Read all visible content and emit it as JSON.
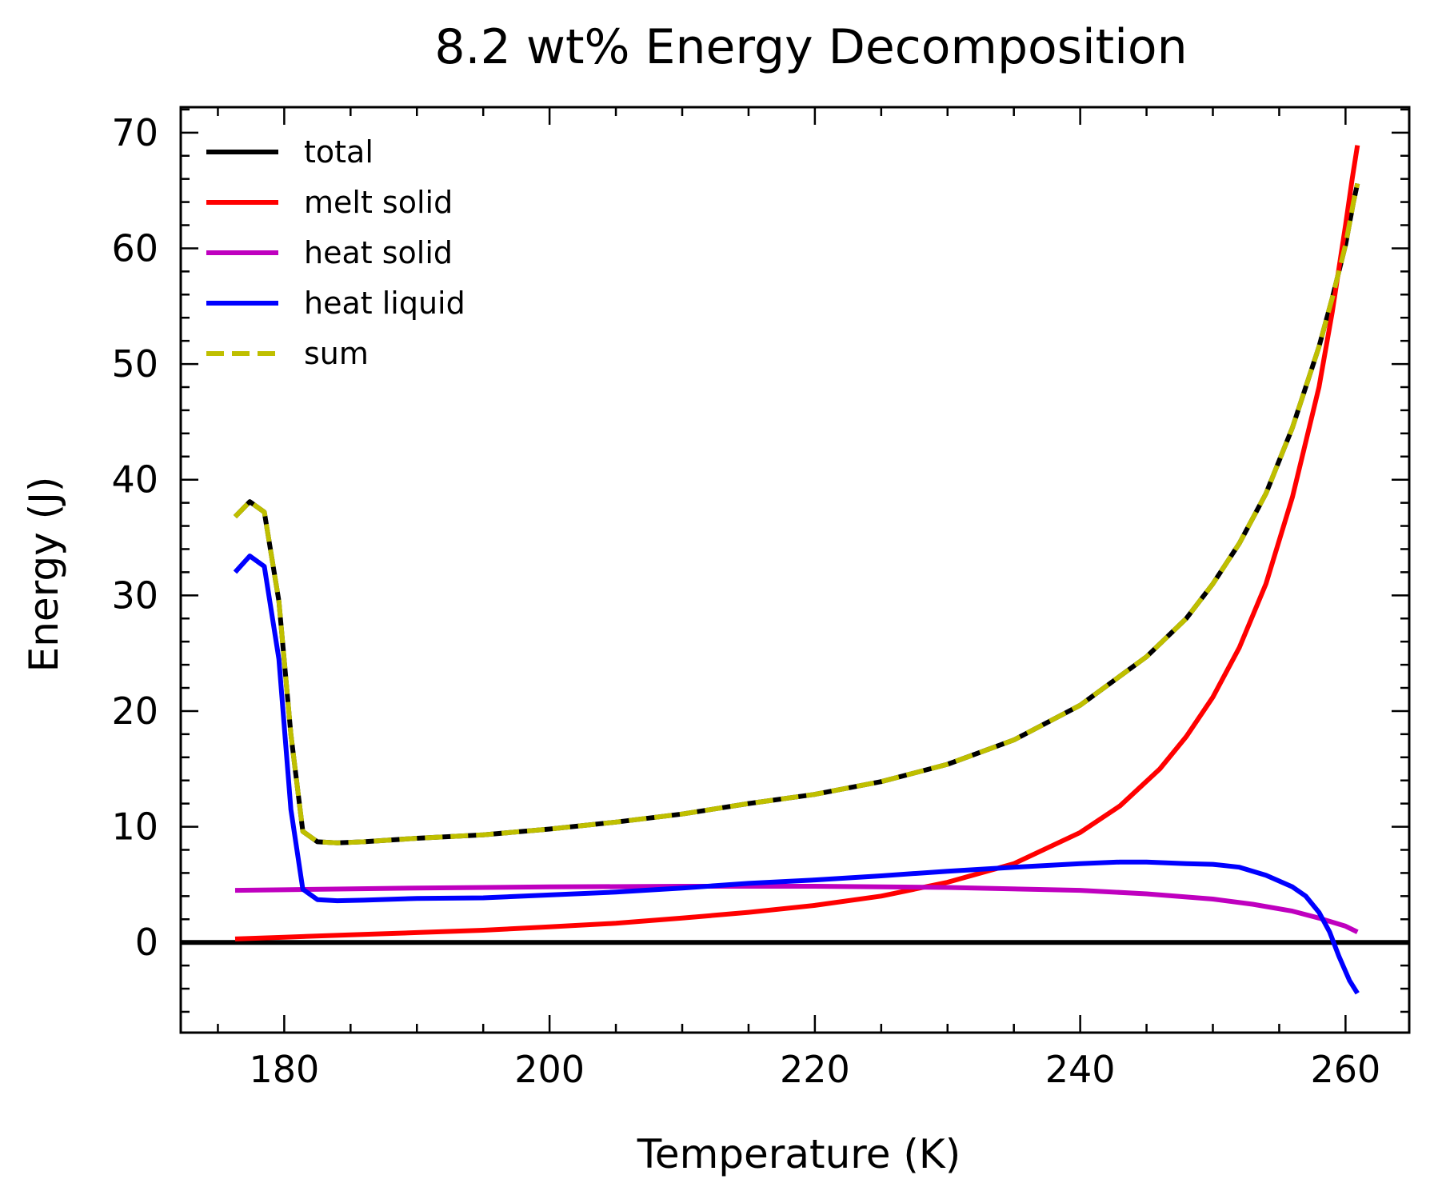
{
  "chart_data": {
    "type": "line",
    "title": "8.2 wt% Energy Decomposition",
    "xlabel": "Temperature (K)",
    "ylabel": "Energy (J)",
    "xlim": [
      172.2,
      264.8
    ],
    "ylim": [
      -7.8,
      72.2
    ],
    "xticks": [
      180,
      200,
      220,
      240,
      260
    ],
    "yticks": [
      0,
      10,
      20,
      30,
      40,
      50,
      60,
      70
    ],
    "grid": false,
    "legend_position": "top-left",
    "reference_line": {
      "y": 0,
      "color": "#000000"
    },
    "series": [
      {
        "name": "total",
        "color": "#000000",
        "style": "solid",
        "points": [
          [
            176.3,
            36.8
          ],
          [
            177.4,
            38.1
          ],
          [
            178.5,
            37.2
          ],
          [
            179.6,
            29.5
          ],
          [
            180.5,
            18.0
          ],
          [
            181.4,
            9.6
          ],
          [
            182.5,
            8.7
          ],
          [
            184,
            8.6
          ],
          [
            186,
            8.7
          ],
          [
            190,
            9.0
          ],
          [
            195,
            9.3
          ],
          [
            200,
            9.8
          ],
          [
            205,
            10.4
          ],
          [
            210,
            11.1
          ],
          [
            215,
            12.0
          ],
          [
            220,
            12.8
          ],
          [
            225,
            13.9
          ],
          [
            230,
            15.4
          ],
          [
            235,
            17.5
          ],
          [
            240,
            20.5
          ],
          [
            245,
            24.7
          ],
          [
            248,
            28.0
          ],
          [
            250,
            31.0
          ],
          [
            252,
            34.5
          ],
          [
            254,
            38.8
          ],
          [
            256,
            44.5
          ],
          [
            258,
            51.5
          ],
          [
            259,
            55.7
          ],
          [
            260,
            60.3
          ],
          [
            260.6,
            64.0
          ],
          [
            260.9,
            65.6
          ]
        ]
      },
      {
        "name": "melt solid",
        "color": "#ff0000",
        "style": "solid",
        "points": [
          [
            176.3,
            0.3
          ],
          [
            180,
            0.45
          ],
          [
            185,
            0.65
          ],
          [
            190,
            0.85
          ],
          [
            195,
            1.05
          ],
          [
            200,
            1.35
          ],
          [
            205,
            1.65
          ],
          [
            210,
            2.1
          ],
          [
            215,
            2.6
          ],
          [
            220,
            3.2
          ],
          [
            225,
            4.0
          ],
          [
            230,
            5.2
          ],
          [
            235,
            6.8
          ],
          [
            240,
            9.5
          ],
          [
            243,
            11.8
          ],
          [
            246,
            15.0
          ],
          [
            248,
            17.8
          ],
          [
            250,
            21.2
          ],
          [
            252,
            25.5
          ],
          [
            254,
            31.0
          ],
          [
            256,
            38.5
          ],
          [
            258,
            48.0
          ],
          [
            259,
            54.5
          ],
          [
            260,
            62.0
          ],
          [
            260.5,
            66.0
          ],
          [
            260.9,
            68.9
          ]
        ]
      },
      {
        "name": "heat solid",
        "color": "#bf00bf",
        "style": "solid",
        "points": [
          [
            176.3,
            4.5
          ],
          [
            180,
            4.55
          ],
          [
            190,
            4.7
          ],
          [
            200,
            4.8
          ],
          [
            210,
            4.85
          ],
          [
            220,
            4.85
          ],
          [
            230,
            4.75
          ],
          [
            240,
            4.5
          ],
          [
            245,
            4.2
          ],
          [
            250,
            3.75
          ],
          [
            253,
            3.3
          ],
          [
            256,
            2.7
          ],
          [
            258,
            2.1
          ],
          [
            260,
            1.4
          ],
          [
            260.9,
            0.9
          ]
        ]
      },
      {
        "name": "heat liquid",
        "color": "#0000ff",
        "style": "solid",
        "points": [
          [
            176.3,
            32.0
          ],
          [
            177.4,
            33.4
          ],
          [
            178.5,
            32.5
          ],
          [
            179.6,
            24.5
          ],
          [
            180.5,
            11.5
          ],
          [
            181.4,
            4.6
          ],
          [
            182.5,
            3.7
          ],
          [
            184,
            3.6
          ],
          [
            186,
            3.65
          ],
          [
            190,
            3.8
          ],
          [
            195,
            3.85
          ],
          [
            200,
            4.1
          ],
          [
            205,
            4.35
          ],
          [
            210,
            4.7
          ],
          [
            215,
            5.1
          ],
          [
            220,
            5.4
          ],
          [
            225,
            5.75
          ],
          [
            230,
            6.15
          ],
          [
            235,
            6.5
          ],
          [
            240,
            6.8
          ],
          [
            243,
            6.95
          ],
          [
            245,
            6.95
          ],
          [
            248,
            6.8
          ],
          [
            250,
            6.75
          ],
          [
            252,
            6.5
          ],
          [
            254,
            5.8
          ],
          [
            256,
            4.8
          ],
          [
            257,
            4.0
          ],
          [
            258,
            2.6
          ],
          [
            258.8,
            0.9
          ],
          [
            259.5,
            -1.2
          ],
          [
            260.3,
            -3.3
          ],
          [
            260.9,
            -4.4
          ]
        ]
      },
      {
        "name": "sum",
        "color": "#bfbf00",
        "style": "dashed",
        "points": [
          [
            176.3,
            36.8
          ],
          [
            177.4,
            38.1
          ],
          [
            178.5,
            37.2
          ],
          [
            179.6,
            29.5
          ],
          [
            180.5,
            18.0
          ],
          [
            181.4,
            9.6
          ],
          [
            182.5,
            8.7
          ],
          [
            184,
            8.6
          ],
          [
            186,
            8.7
          ],
          [
            190,
            9.0
          ],
          [
            195,
            9.3
          ],
          [
            200,
            9.8
          ],
          [
            205,
            10.4
          ],
          [
            210,
            11.1
          ],
          [
            215,
            12.0
          ],
          [
            220,
            12.8
          ],
          [
            225,
            13.9
          ],
          [
            230,
            15.4
          ],
          [
            235,
            17.5
          ],
          [
            240,
            20.5
          ],
          [
            245,
            24.7
          ],
          [
            248,
            28.0
          ],
          [
            250,
            31.0
          ],
          [
            252,
            34.5
          ],
          [
            254,
            38.8
          ],
          [
            256,
            44.5
          ],
          [
            258,
            51.5
          ],
          [
            259,
            55.7
          ],
          [
            260,
            60.3
          ],
          [
            260.6,
            64.0
          ],
          [
            260.9,
            65.6
          ]
        ]
      }
    ]
  }
}
